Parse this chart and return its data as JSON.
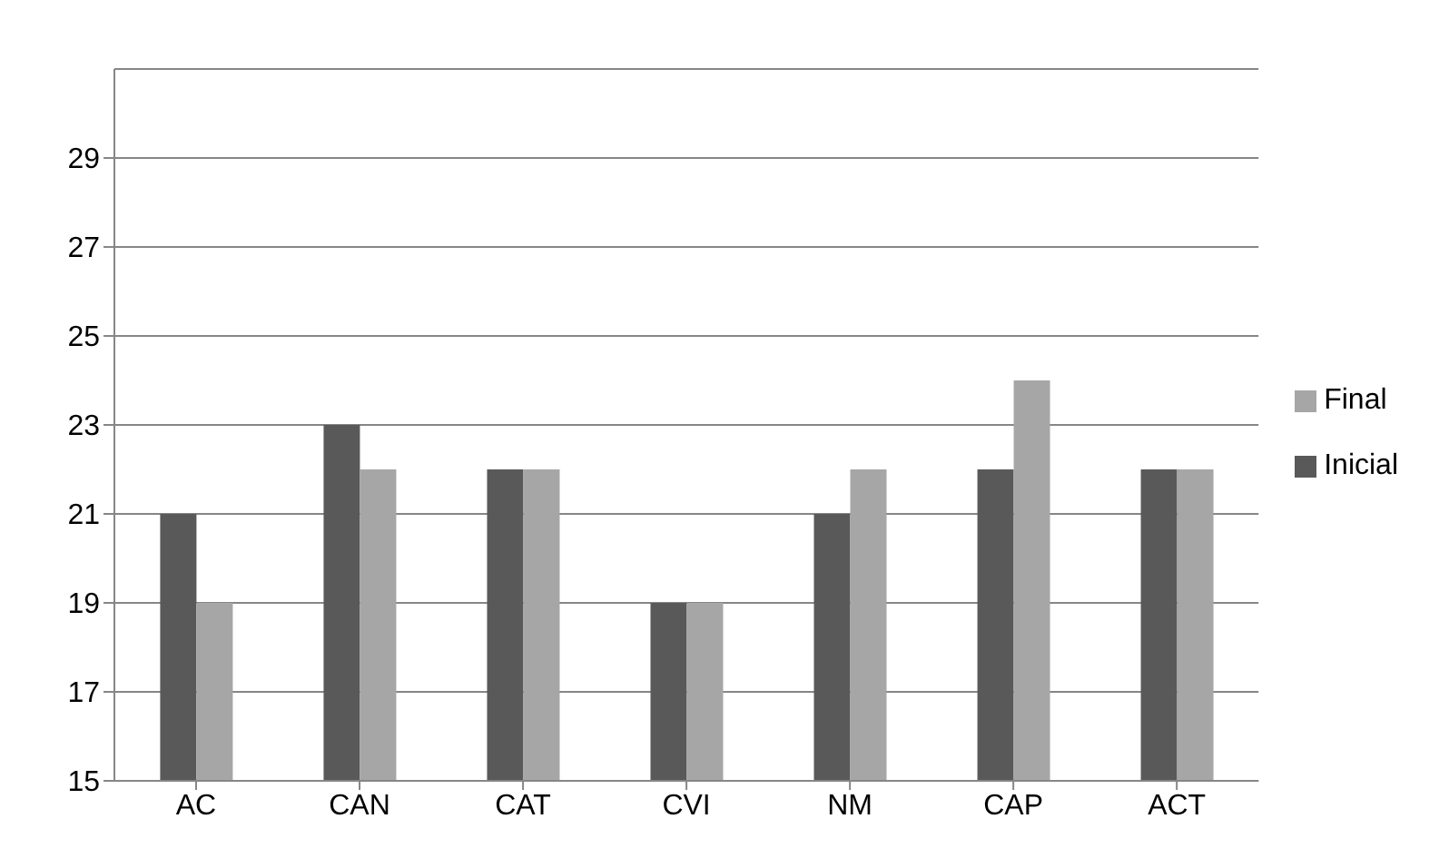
{
  "chart_data": {
    "type": "bar",
    "categories": [
      "AC",
      "CAN",
      "CAT",
      "CVI",
      "NM",
      "CAP",
      "ACT"
    ],
    "series": [
      {
        "name": "Inicial",
        "color": "#595959",
        "values": [
          21,
          23,
          22,
          19,
          21,
          22,
          22
        ]
      },
      {
        "name": "Final",
        "color": "#a6a6a6",
        "values": [
          19,
          22,
          22,
          19,
          22,
          24,
          22
        ]
      }
    ],
    "ylim": [
      15,
      31
    ],
    "yticks": [
      15,
      17,
      19,
      21,
      23,
      25,
      27,
      29
    ],
    "grid": "y",
    "legend": "right"
  }
}
